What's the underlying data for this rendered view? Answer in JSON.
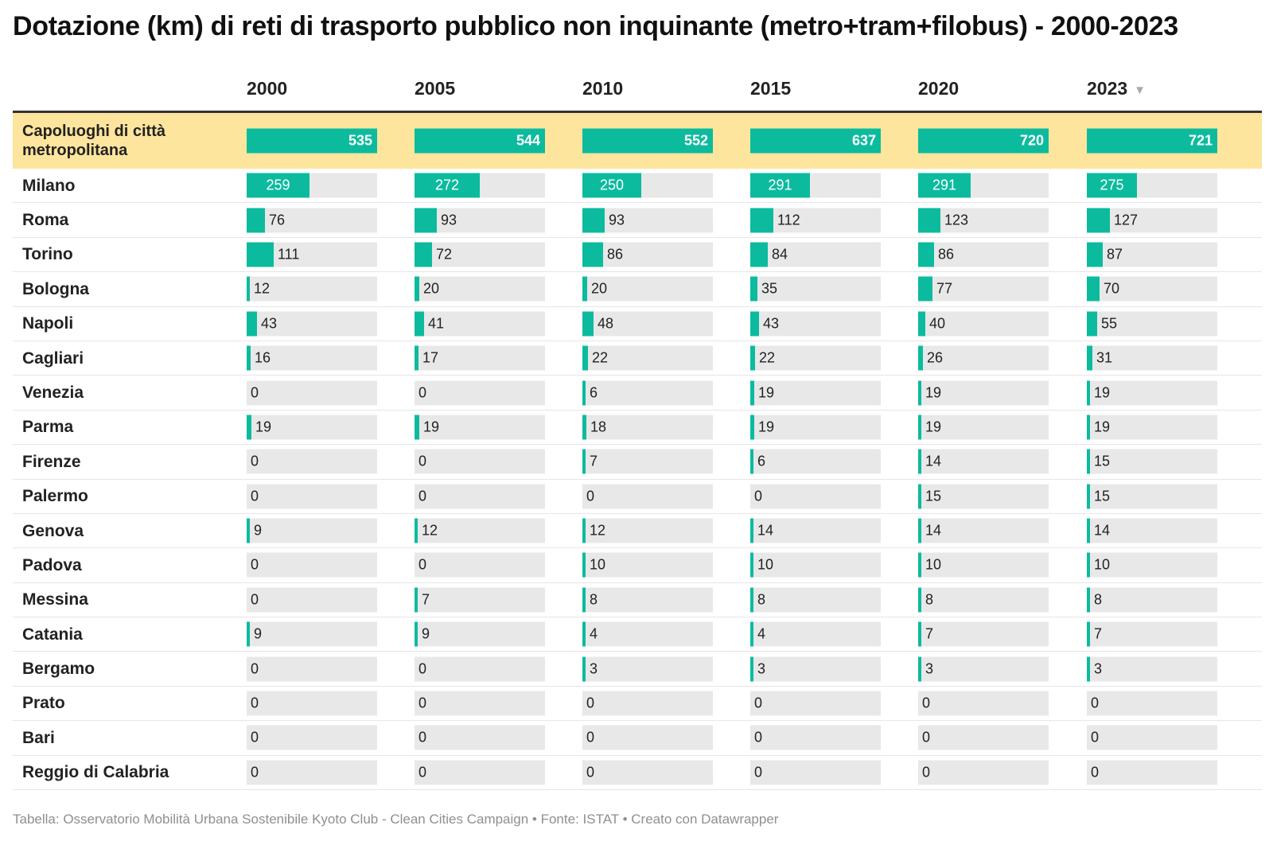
{
  "title": "Dotazione (km) di reti di trasporto pubblico non inquinante (metro+tram+filobus) - 2000-2023",
  "source": "Tabella: Osservatorio Mobilità Urbana Sostenibile Kyoto Club - Clean Cities Campaign • Fonte: ISTAT • Creato con Datawrapper",
  "sort_icon": "triangle-down-icon",
  "colors": {
    "bar": "#0cbb9e",
    "track": "#e8e8e8",
    "highlight": "#fde59d"
  },
  "chart_data": {
    "type": "table",
    "columns": [
      "2000",
      "2005",
      "2010",
      "2015",
      "2020",
      "2023"
    ],
    "sorted_by": "2023",
    "sort_order": "descending",
    "total_row": {
      "label": "Capoluoghi di città metropolitana",
      "values": [
        535,
        544,
        552,
        637,
        720,
        721
      ]
    },
    "rows": [
      {
        "label": "Milano",
        "values": [
          259,
          272,
          250,
          291,
          291,
          275
        ]
      },
      {
        "label": "Roma",
        "values": [
          76,
          93,
          93,
          112,
          123,
          127
        ]
      },
      {
        "label": "Torino",
        "values": [
          111,
          72,
          86,
          84,
          86,
          87
        ]
      },
      {
        "label": "Bologna",
        "values": [
          12,
          20,
          20,
          35,
          77,
          70
        ]
      },
      {
        "label": "Napoli",
        "values": [
          43,
          41,
          48,
          43,
          40,
          55
        ]
      },
      {
        "label": "Cagliari",
        "values": [
          16,
          17,
          22,
          22,
          26,
          31
        ]
      },
      {
        "label": "Venezia",
        "values": [
          0,
          0,
          6,
          19,
          19,
          19
        ]
      },
      {
        "label": "Parma",
        "values": [
          19,
          19,
          18,
          19,
          19,
          19
        ]
      },
      {
        "label": "Firenze",
        "values": [
          0,
          0,
          7,
          6,
          14,
          15
        ]
      },
      {
        "label": "Palermo",
        "values": [
          0,
          0,
          0,
          0,
          15,
          15
        ]
      },
      {
        "label": "Genova",
        "values": [
          9,
          12,
          12,
          14,
          14,
          14
        ]
      },
      {
        "label": "Padova",
        "values": [
          0,
          0,
          10,
          10,
          10,
          10
        ]
      },
      {
        "label": "Messina",
        "values": [
          0,
          7,
          8,
          8,
          8,
          8
        ]
      },
      {
        "label": "Catania",
        "values": [
          9,
          9,
          4,
          4,
          7,
          7
        ]
      },
      {
        "label": "Bergamo",
        "values": [
          0,
          0,
          3,
          3,
          3,
          3
        ]
      },
      {
        "label": "Prato",
        "values": [
          0,
          0,
          0,
          0,
          0,
          0
        ]
      },
      {
        "label": "Bari",
        "values": [
          0,
          0,
          0,
          0,
          0,
          0
        ]
      },
      {
        "label": "Reggio di Calabria",
        "values": [
          0,
          0,
          0,
          0,
          0,
          0
        ]
      }
    ]
  }
}
